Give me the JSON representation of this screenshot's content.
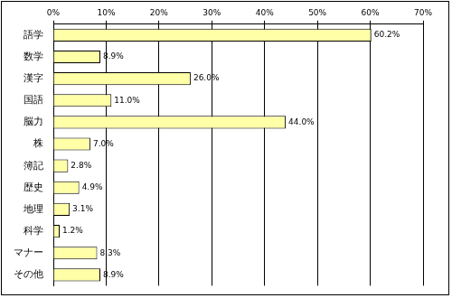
{
  "chart_data": {
    "type": "bar",
    "orientation": "horizontal",
    "categories": [
      "語学",
      "数学",
      "漢字",
      "国語",
      "脳力",
      "株",
      "簿記",
      "歴史",
      "地理",
      "科学",
      "マナー",
      "その他"
    ],
    "values": [
      60.2,
      8.9,
      26.0,
      11.0,
      44.0,
      7.0,
      2.8,
      4.9,
      3.1,
      1.2,
      8.3,
      8.9
    ],
    "value_labels": [
      "60.2%",
      "8.9%",
      "26.0%",
      "11.0%",
      "44.0%",
      "7.0%",
      "2.8%",
      "4.9%",
      "3.1%",
      "1.2%",
      "8.3%",
      "8.9%"
    ],
    "data_labels": true,
    "color": "#ffffa8",
    "xlim": [
      0,
      70
    ],
    "xticks": [
      {
        "value": 0,
        "label": "0%"
      },
      {
        "value": 10,
        "label": "10%"
      },
      {
        "value": 20,
        "label": "20%"
      },
      {
        "value": 30,
        "label": "30%"
      },
      {
        "value": 40,
        "label": "40%"
      },
      {
        "value": 50,
        "label": "50%"
      },
      {
        "value": 60,
        "label": "60%"
      },
      {
        "value": 70,
        "label": "70%"
      }
    ],
    "grid": true
  }
}
